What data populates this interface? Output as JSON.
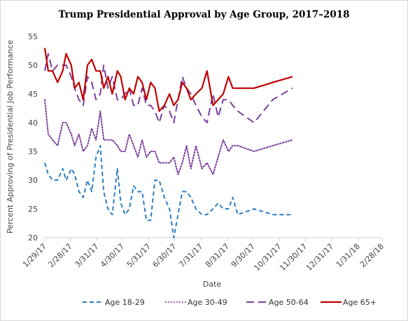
{
  "chart_data": {
    "type": "line",
    "title": "Trump Presidential Approval by Age Group, 2017–2018",
    "xlabel": "Date",
    "ylabel": "Percent Approving of Presidential Job Performance",
    "ylim": [
      20,
      55
    ],
    "yticks": [
      20,
      25,
      30,
      35,
      40,
      45,
      50,
      55
    ],
    "xlim": [
      "2017-01-29",
      "2018-02-28"
    ],
    "xticks": [
      "1/29/17",
      "2/28/17",
      "3/31/17",
      "4/30/17",
      "5/31/17",
      "6/30/17",
      "7/31/17",
      "8/31/17",
      "9/30/17",
      "10/31/17",
      "11/30/17",
      "12/31/17",
      "1/31/18",
      "2/28/18"
    ],
    "xtick_dates": [
      "2017-01-29",
      "2017-02-28",
      "2017-03-31",
      "2017-04-30",
      "2017-05-31",
      "2017-06-30",
      "2017-07-31",
      "2017-08-31",
      "2017-09-30",
      "2017-10-31",
      "2017-11-30",
      "2017-12-31",
      "2018-01-31",
      "2018-02-28"
    ],
    "grid": false,
    "legend": "bottom",
    "series": [
      {
        "name": "Age 18-29",
        "color": "#2e7fc1",
        "style": "dashed",
        "points": [
          [
            "2017-01-29",
            33
          ],
          [
            "2017-02-02",
            31
          ],
          [
            "2017-02-07",
            30
          ],
          [
            "2017-02-13",
            30
          ],
          [
            "2017-02-19",
            32
          ],
          [
            "2017-02-23",
            30
          ],
          [
            "2017-03-01",
            32
          ],
          [
            "2017-03-05",
            31
          ],
          [
            "2017-03-10",
            28
          ],
          [
            "2017-03-15",
            27
          ],
          [
            "2017-03-20",
            30
          ],
          [
            "2017-03-25",
            28
          ],
          [
            "2017-03-30",
            34
          ],
          [
            "2017-04-04",
            36
          ],
          [
            "2017-04-08",
            28
          ],
          [
            "2017-04-13",
            25
          ],
          [
            "2017-04-18",
            24
          ],
          [
            "2017-04-24",
            32
          ],
          [
            "2017-04-28",
            26
          ],
          [
            "2017-05-03",
            24
          ],
          [
            "2017-05-08",
            25
          ],
          [
            "2017-05-13",
            29
          ],
          [
            "2017-05-18",
            28
          ],
          [
            "2017-05-23",
            28
          ],
          [
            "2017-05-28",
            23
          ],
          [
            "2017-06-02",
            23
          ],
          [
            "2017-06-07",
            30
          ],
          [
            "2017-06-12",
            30
          ],
          [
            "2017-06-18",
            27
          ],
          [
            "2017-06-24",
            25
          ],
          [
            "2017-06-29",
            20
          ],
          [
            "2017-07-04",
            24
          ],
          [
            "2017-07-09",
            28
          ],
          [
            "2017-07-14",
            28
          ],
          [
            "2017-07-19",
            27
          ],
          [
            "2017-07-25",
            25
          ],
          [
            "2017-08-01",
            24
          ],
          [
            "2017-08-07",
            24
          ],
          [
            "2017-08-14",
            25
          ],
          [
            "2017-08-20",
            26
          ],
          [
            "2017-08-26",
            25
          ],
          [
            "2017-09-01",
            25
          ],
          [
            "2017-09-06",
            27
          ],
          [
            "2017-09-12",
            24
          ],
          [
            "2017-10-01",
            25
          ],
          [
            "2017-10-23",
            24
          ],
          [
            "2017-11-15",
            24
          ]
        ]
      },
      {
        "name": "Age 30-49",
        "color": "#7b3f9e",
        "style": "dotted",
        "points": [
          [
            "2017-01-29",
            44
          ],
          [
            "2017-02-02",
            38
          ],
          [
            "2017-02-07",
            37
          ],
          [
            "2017-02-13",
            36
          ],
          [
            "2017-02-19",
            40
          ],
          [
            "2017-02-23",
            40
          ],
          [
            "2017-03-01",
            38
          ],
          [
            "2017-03-05",
            36
          ],
          [
            "2017-03-10",
            38
          ],
          [
            "2017-03-15",
            35
          ],
          [
            "2017-03-20",
            36
          ],
          [
            "2017-03-25",
            39
          ],
          [
            "2017-03-30",
            37
          ],
          [
            "2017-04-04",
            42
          ],
          [
            "2017-04-08",
            37
          ],
          [
            "2017-04-13",
            37
          ],
          [
            "2017-04-18",
            37
          ],
          [
            "2017-04-24",
            36
          ],
          [
            "2017-04-28",
            35
          ],
          [
            "2017-05-03",
            35
          ],
          [
            "2017-05-08",
            38
          ],
          [
            "2017-05-13",
            36
          ],
          [
            "2017-05-18",
            34
          ],
          [
            "2017-05-23",
            37
          ],
          [
            "2017-05-28",
            34
          ],
          [
            "2017-06-02",
            35
          ],
          [
            "2017-06-07",
            35
          ],
          [
            "2017-06-12",
            33
          ],
          [
            "2017-06-18",
            33
          ],
          [
            "2017-06-24",
            33
          ],
          [
            "2017-06-29",
            34
          ],
          [
            "2017-07-04",
            31
          ],
          [
            "2017-07-09",
            33
          ],
          [
            "2017-07-14",
            36
          ],
          [
            "2017-07-19",
            32
          ],
          [
            "2017-07-25",
            36
          ],
          [
            "2017-08-01",
            32
          ],
          [
            "2017-08-07",
            33
          ],
          [
            "2017-08-14",
            31
          ],
          [
            "2017-08-20",
            34
          ],
          [
            "2017-08-26",
            37
          ],
          [
            "2017-09-01",
            35
          ],
          [
            "2017-09-06",
            36
          ],
          [
            "2017-09-12",
            36
          ],
          [
            "2017-10-01",
            35
          ],
          [
            "2017-10-23",
            36
          ],
          [
            "2017-11-15",
            37
          ]
        ]
      },
      {
        "name": "Age 50-64",
        "color": "#7b3f9e",
        "style": "long-dash",
        "points": [
          [
            "2017-01-29",
            49
          ],
          [
            "2017-02-02",
            52
          ],
          [
            "2017-02-07",
            49
          ],
          [
            "2017-02-13",
            50
          ],
          [
            "2017-02-19",
            50
          ],
          [
            "2017-02-23",
            50
          ],
          [
            "2017-03-01",
            48
          ],
          [
            "2017-03-05",
            46
          ],
          [
            "2017-03-10",
            44
          ],
          [
            "2017-03-15",
            43
          ],
          [
            "2017-03-20",
            48
          ],
          [
            "2017-03-25",
            47
          ],
          [
            "2017-03-30",
            44
          ],
          [
            "2017-04-04",
            45
          ],
          [
            "2017-04-08",
            50
          ],
          [
            "2017-04-13",
            46
          ],
          [
            "2017-04-18",
            48
          ],
          [
            "2017-04-24",
            44
          ],
          [
            "2017-04-28",
            44
          ],
          [
            "2017-05-03",
            45
          ],
          [
            "2017-05-08",
            46
          ],
          [
            "2017-05-13",
            43
          ],
          [
            "2017-05-18",
            43
          ],
          [
            "2017-05-23",
            46
          ],
          [
            "2017-05-28",
            43
          ],
          [
            "2017-06-02",
            43
          ],
          [
            "2017-06-07",
            42
          ],
          [
            "2017-06-12",
            40
          ],
          [
            "2017-06-18",
            43
          ],
          [
            "2017-06-24",
            42
          ],
          [
            "2017-06-29",
            40
          ],
          [
            "2017-07-04",
            44
          ],
          [
            "2017-07-09",
            48
          ],
          [
            "2017-07-14",
            46
          ],
          [
            "2017-07-19",
            45
          ],
          [
            "2017-07-25",
            43
          ],
          [
            "2017-08-01",
            41
          ],
          [
            "2017-08-07",
            40
          ],
          [
            "2017-08-14",
            45
          ],
          [
            "2017-08-20",
            41
          ],
          [
            "2017-08-26",
            44
          ],
          [
            "2017-09-01",
            44
          ],
          [
            "2017-09-06",
            43
          ],
          [
            "2017-09-12",
            42
          ],
          [
            "2017-10-01",
            40
          ],
          [
            "2017-10-23",
            44
          ],
          [
            "2017-11-15",
            46
          ]
        ]
      },
      {
        "name": "Age 65+",
        "color": "#c00000",
        "style": "solid",
        "points": [
          [
            "2017-01-29",
            53
          ],
          [
            "2017-02-02",
            49
          ],
          [
            "2017-02-07",
            49
          ],
          [
            "2017-02-13",
            47
          ],
          [
            "2017-02-19",
            49
          ],
          [
            "2017-02-23",
            52
          ],
          [
            "2017-03-01",
            50
          ],
          [
            "2017-03-05",
            46
          ],
          [
            "2017-03-10",
            47
          ],
          [
            "2017-03-15",
            44
          ],
          [
            "2017-03-20",
            50
          ],
          [
            "2017-03-25",
            51
          ],
          [
            "2017-03-30",
            49
          ],
          [
            "2017-04-04",
            49
          ],
          [
            "2017-04-08",
            46
          ],
          [
            "2017-04-13",
            48
          ],
          [
            "2017-04-18",
            45
          ],
          [
            "2017-04-24",
            49
          ],
          [
            "2017-04-28",
            48
          ],
          [
            "2017-05-03",
            44
          ],
          [
            "2017-05-08",
            46
          ],
          [
            "2017-05-13",
            45
          ],
          [
            "2017-05-18",
            48
          ],
          [
            "2017-05-23",
            47
          ],
          [
            "2017-05-28",
            44
          ],
          [
            "2017-06-02",
            47
          ],
          [
            "2017-06-07",
            46
          ],
          [
            "2017-06-12",
            42
          ],
          [
            "2017-06-18",
            43
          ],
          [
            "2017-06-24",
            45
          ],
          [
            "2017-06-29",
            43
          ],
          [
            "2017-07-04",
            44
          ],
          [
            "2017-07-09",
            47
          ],
          [
            "2017-07-14",
            46
          ],
          [
            "2017-07-19",
            44
          ],
          [
            "2017-07-25",
            45
          ],
          [
            "2017-08-01",
            46
          ],
          [
            "2017-08-07",
            49
          ],
          [
            "2017-08-14",
            43
          ],
          [
            "2017-08-20",
            44
          ],
          [
            "2017-08-26",
            45
          ],
          [
            "2017-09-01",
            48
          ],
          [
            "2017-09-06",
            46
          ],
          [
            "2017-09-12",
            46
          ],
          [
            "2017-10-01",
            46
          ],
          [
            "2017-10-23",
            47
          ],
          [
            "2017-11-15",
            48
          ]
        ]
      }
    ]
  }
}
